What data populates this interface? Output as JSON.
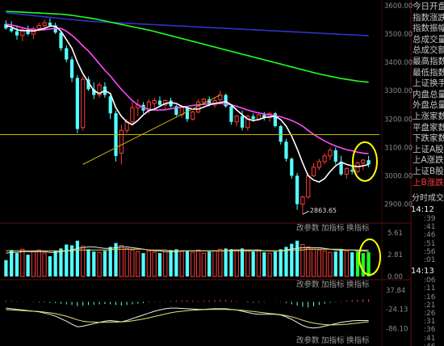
{
  "price_axis": [
    "3600.00",
    "3500.00",
    "3400.00",
    "3300.00",
    "3200.00",
    "3100.00",
    "3000.00",
    "2900.00"
  ],
  "low_marker": "2863.65",
  "volume_axis": [
    "5.61",
    "2.81",
    "0.00"
  ],
  "macd_axis": [
    "37.84",
    "-24.13",
    "-86.10"
  ],
  "toolbar": {
    "params_label": "改参数",
    "add_indicator_label": "加指标",
    "switch_indicator_label": "换指标"
  },
  "side_stats": [
    {
      "label": "今日开盘"
    },
    {
      "label": "指数涨跌"
    },
    {
      "label": "指数振幅"
    },
    {
      "label": "总成交量"
    },
    {
      "label": "总成交额"
    },
    {
      "label": "最高指数"
    },
    {
      "label": "最低指数"
    },
    {
      "label": "上证换手"
    },
    {
      "label": "内盘总量"
    },
    {
      "label": "外盘总量"
    },
    {
      "label": "上涨家数"
    },
    {
      "label": "平盘家数"
    },
    {
      "label": "下跌家数"
    },
    {
      "label": "上证A股"
    },
    {
      "label": "上A涨跌"
    },
    {
      "label": "上证B股"
    },
    {
      "label": "上B涨跌"
    }
  ],
  "tick_section_title": "分时成交",
  "tick_times": [
    {
      "time": "14:12",
      "ticks": [
        "39",
        "41",
        "46",
        "51",
        "56",
        "01"
      ]
    },
    {
      "time": "14:13",
      "ticks": [
        "06",
        "11",
        "16",
        "21",
        "26",
        "31",
        "36",
        "41",
        "46"
      ]
    }
  ],
  "colors": {
    "up": "#ff3b3b",
    "down": "#54ffff",
    "ma_short": "#ffffff",
    "ma_mid": "#ff4bff",
    "ma_long": "#20ff20",
    "ma_longest": "#3232c8",
    "highlight": "#ffff00"
  },
  "chart_data": {
    "type": "candlestick",
    "ylim": [
      2850,
      3620
    ],
    "candles": [
      [
        3535,
        3548,
        3515,
        3520
      ],
      [
        3520,
        3545,
        3505,
        3510
      ],
      [
        3510,
        3530,
        3480,
        3495
      ],
      [
        3495,
        3520,
        3475,
        3515
      ],
      [
        3515,
        3530,
        3495,
        3500
      ],
      [
        3500,
        3525,
        3482,
        3520
      ],
      [
        3520,
        3540,
        3510,
        3530
      ],
      [
        3530,
        3550,
        3515,
        3540
      ],
      [
        3540,
        3555,
        3525,
        3530
      ],
      [
        3530,
        3540,
        3500,
        3505
      ],
      [
        3505,
        3510,
        3440,
        3450
      ],
      [
        3450,
        3460,
        3400,
        3410
      ],
      [
        3410,
        3420,
        3330,
        3345
      ],
      [
        3345,
        3355,
        3150,
        3165
      ],
      [
        3170,
        3350,
        3160,
        3340
      ],
      [
        3340,
        3350,
        3300,
        3305
      ],
      [
        3305,
        3330,
        3270,
        3285
      ],
      [
        3285,
        3330,
        3275,
        3320
      ],
      [
        3315,
        3330,
        3275,
        3285
      ],
      [
        3280,
        3285,
        3200,
        3220
      ],
      [
        3220,
        3230,
        3050,
        3070
      ],
      [
        3080,
        3180,
        3040,
        3160
      ],
      [
        3160,
        3200,
        3150,
        3190
      ],
      [
        3190,
        3260,
        3180,
        3240
      ],
      [
        3240,
        3270,
        3210,
        3250
      ],
      [
        3250,
        3260,
        3220,
        3230
      ],
      [
        3230,
        3270,
        3220,
        3260
      ],
      [
        3255,
        3275,
        3240,
        3265
      ],
      [
        3265,
        3280,
        3245,
        3250
      ],
      [
        3250,
        3270,
        3235,
        3265
      ],
      [
        3265,
        3275,
        3240,
        3245
      ],
      [
        3245,
        3250,
        3210,
        3215
      ],
      [
        3215,
        3250,
        3205,
        3240
      ],
      [
        3240,
        3245,
        3190,
        3200
      ],
      [
        3200,
        3230,
        3195,
        3225
      ],
      [
        3225,
        3270,
        3220,
        3260
      ],
      [
        3260,
        3275,
        3250,
        3270
      ],
      [
        3270,
        3280,
        3245,
        3250
      ],
      [
        3250,
        3275,
        3240,
        3265
      ],
      [
        3268,
        3300,
        3255,
        3285
      ],
      [
        3285,
        3290,
        3240,
        3245
      ],
      [
        3245,
        3250,
        3180,
        3190
      ],
      [
        3190,
        3215,
        3175,
        3210
      ],
      [
        3210,
        3230,
        3160,
        3170
      ],
      [
        3170,
        3215,
        3160,
        3210
      ],
      [
        3210,
        3220,
        3190,
        3200
      ],
      [
        3200,
        3220,
        3195,
        3215
      ],
      [
        3215,
        3225,
        3195,
        3205
      ],
      [
        3205,
        3225,
        3190,
        3220
      ],
      [
        3220,
        3225,
        3170,
        3175
      ],
      [
        3175,
        3180,
        3110,
        3120
      ],
      [
        3120,
        3130,
        3050,
        3060
      ],
      [
        3060,
        3065,
        2990,
        3000
      ],
      [
        3000,
        3010,
        2880,
        2900
      ],
      [
        2900,
        2930,
        2864,
        2925
      ],
      [
        2925,
        3010,
        2920,
        3000
      ],
      [
        3000,
        3045,
        2995,
        3030
      ],
      [
        3030,
        3060,
        3020,
        3050
      ],
      [
        3050,
        3080,
        3040,
        3070
      ],
      [
        3070,
        3100,
        3055,
        3090
      ],
      [
        3090,
        3100,
        3040,
        3050
      ],
      [
        3050,
        3070,
        3000,
        3005
      ],
      [
        3005,
        3030,
        2990,
        3025
      ],
      [
        3020,
        3035,
        3005,
        3015
      ],
      [
        3015,
        3050,
        3008,
        3045
      ],
      [
        3045,
        3060,
        3020,
        3055
      ],
      [
        3055,
        3070,
        3030,
        3040
      ]
    ],
    "ma_short": [
      3530,
      3525,
      3515,
      3512,
      3512,
      3510,
      3515,
      3520,
      3528,
      3528,
      3510,
      3480,
      3450,
      3400,
      3360,
      3330,
      3300,
      3290,
      3300,
      3290,
      3240,
      3210,
      3190,
      3180,
      3195,
      3215,
      3230,
      3235,
      3245,
      3255,
      3258,
      3255,
      3245,
      3240,
      3235,
      3235,
      3242,
      3250,
      3255,
      3258,
      3262,
      3250,
      3232,
      3215,
      3200,
      3195,
      3198,
      3205,
      3208,
      3210,
      3198,
      3175,
      3140,
      3095,
      3045,
      3000,
      2985,
      2978,
      2990,
      3015,
      3035,
      3048,
      3040,
      3035,
      3032,
      3035,
      3040
    ],
    "ma_mid": [
      3535,
      3532,
      3528,
      3522,
      3518,
      3515,
      3514,
      3515,
      3518,
      3520,
      3520,
      3510,
      3495,
      3478,
      3458,
      3440,
      3418,
      3395,
      3372,
      3352,
      3328,
      3305,
      3285,
      3265,
      3250,
      3240,
      3235,
      3232,
      3232,
      3233,
      3236,
      3240,
      3243,
      3245,
      3248,
      3250,
      3252,
      3254,
      3255,
      3255,
      3253,
      3250,
      3245,
      3238,
      3232,
      3226,
      3222,
      3218,
      3215,
      3212,
      3208,
      3202,
      3195,
      3186,
      3175,
      3160,
      3146,
      3134,
      3123,
      3113,
      3105,
      3098,
      3092,
      3088,
      3083,
      3080,
      3078
    ],
    "ma_long": [
      3580,
      3579,
      3578,
      3577,
      3576,
      3575,
      3574,
      3573,
      3572,
      3571,
      3570,
      3568,
      3566,
      3563,
      3560,
      3557,
      3554,
      3550,
      3546,
      3542,
      3538,
      3534,
      3530,
      3526,
      3522,
      3518,
      3514,
      3509,
      3504,
      3499,
      3494,
      3489,
      3484,
      3479,
      3474,
      3469,
      3464,
      3459,
      3454,
      3449,
      3444,
      3439,
      3434,
      3429,
      3424,
      3419,
      3414,
      3409,
      3404,
      3399,
      3394,
      3389,
      3384,
      3379,
      3374,
      3369,
      3364,
      3359,
      3355,
      3351,
      3347,
      3343,
      3340,
      3337,
      3334,
      3332,
      3330
    ],
    "ma_longest": [
      3575,
      3573,
      3571,
      3569,
      3567,
      3565,
      3563,
      3561,
      3559,
      3557,
      3555,
      3553,
      3551,
      3549,
      3547,
      3545,
      3544,
      3543,
      3542,
      3541,
      3540,
      3539,
      3538,
      3537,
      3536,
      3535,
      3534,
      3533,
      3532,
      3531,
      3530,
      3529,
      3528,
      3527,
      3526,
      3525,
      3524,
      3523,
      3522,
      3521,
      3520,
      3519,
      3518,
      3517,
      3516,
      3515,
      3514,
      3513,
      3512,
      3511,
      3510,
      3509,
      3508,
      3507,
      3506,
      3505,
      3504,
      3503,
      3502,
      3501,
      3500,
      3499,
      3498,
      3497,
      3496,
      3495,
      3494
    ],
    "horizontal_line": 3145,
    "trend_line": [
      [
        14,
        3040
      ],
      [
        39,
        3285
      ]
    ],
    "volume": [
      2.1,
      3.4,
      3.0,
      3.5,
      2.8,
      3.2,
      3.4,
      3.0,
      2.6,
      3.3,
      3.6,
      4.1,
      4.0,
      4.6,
      3.9,
      3.5,
      3.2,
      3.1,
      3.3,
      3.8,
      4.3,
      4.0,
      3.6,
      3.4,
      3.2,
      3.0,
      3.3,
      3.1,
      3.0,
      3.2,
      3.4,
      3.5,
      3.2,
      3.3,
      3.1,
      3.4,
      3.0,
      3.2,
      3.3,
      3.5,
      3.6,
      3.5,
      3.4,
      3.6,
      3.3,
      3.2,
      3.4,
      3.1,
      3.0,
      3.2,
      3.5,
      3.8,
      4.2,
      4.6,
      4.1,
      3.8,
      3.5,
      3.4,
      3.3,
      3.1,
      3.2,
      3.4,
      3.3,
      3.1,
      3.2,
      3.0,
      3.1
    ],
    "volume_ma_a": [
      3.0,
      3.1,
      3.1,
      3.2,
      3.2,
      3.2,
      3.2,
      3.2,
      3.1,
      3.1,
      3.2,
      3.3,
      3.4,
      3.6,
      3.7,
      3.8,
      3.8,
      3.7,
      3.6,
      3.6,
      3.7,
      3.8,
      3.8,
      3.7,
      3.6,
      3.5,
      3.4,
      3.3,
      3.3,
      3.2,
      3.2,
      3.2,
      3.3,
      3.3,
      3.3,
      3.3,
      3.3,
      3.3,
      3.3,
      3.3,
      3.3,
      3.4,
      3.4,
      3.4,
      3.4,
      3.4,
      3.4,
      3.3,
      3.3,
      3.3,
      3.3,
      3.4,
      3.5,
      3.6,
      3.7,
      3.7,
      3.7,
      3.7,
      3.6,
      3.5,
      3.4,
      3.4,
      3.4,
      3.4,
      3.3,
      3.3,
      3.2
    ],
    "volume_ma_b": [
      3.3,
      3.3,
      3.3,
      3.3,
      3.3,
      3.3,
      3.3,
      3.3,
      3.3,
      3.3,
      3.3,
      3.3,
      3.3,
      3.4,
      3.4,
      3.4,
      3.4,
      3.4,
      3.4,
      3.4,
      3.5,
      3.5,
      3.5,
      3.5,
      3.5,
      3.5,
      3.4,
      3.4,
      3.4,
      3.4,
      3.3,
      3.3,
      3.3,
      3.3,
      3.3,
      3.3,
      3.3,
      3.3,
      3.3,
      3.3,
      3.3,
      3.3,
      3.3,
      3.3,
      3.3,
      3.3,
      3.3,
      3.3,
      3.3,
      3.3,
      3.3,
      3.3,
      3.4,
      3.4,
      3.4,
      3.5,
      3.5,
      3.5,
      3.5,
      3.5,
      3.5,
      3.5,
      3.4,
      3.4,
      3.4,
      3.4,
      3.4
    ],
    "volume_ylim": [
      0,
      5.61
    ],
    "macd_hist": [
      4,
      3,
      2,
      1,
      0,
      -1,
      -2,
      -2,
      -3,
      -4,
      -6,
      -8,
      -10,
      -14,
      -12,
      -10,
      -9,
      -8,
      -7,
      -8,
      -10,
      -12,
      -10,
      -8,
      -6,
      -4,
      -2,
      -1,
      1,
      2,
      3,
      4,
      5,
      5,
      4,
      3,
      4,
      5,
      6,
      7,
      6,
      4,
      2,
      0,
      -2,
      -3,
      -2,
      -1,
      0,
      1,
      -1,
      -4,
      -8,
      -12,
      -16,
      -18,
      -14,
      -10,
      -6,
      -3,
      -1,
      2,
      4,
      6,
      7,
      8,
      8
    ],
    "macd_dif": [
      -20,
      -22,
      -24,
      -26,
      -28,
      -30,
      -32,
      -36,
      -40,
      -46,
      -54,
      -62,
      -72,
      -80,
      -78,
      -74,
      -70,
      -66,
      -62,
      -60,
      -62,
      -64,
      -60,
      -54,
      -48,
      -42,
      -36,
      -30,
      -26,
      -22,
      -20,
      -20,
      -21,
      -22,
      -23,
      -24,
      -24,
      -23,
      -22,
      -22,
      -22,
      -24,
      -26,
      -30,
      -34,
      -38,
      -40,
      -40,
      -40,
      -40,
      -42,
      -48,
      -56,
      -66,
      -76,
      -82,
      -84,
      -82,
      -78,
      -74,
      -70,
      -66,
      -63,
      -61,
      -60,
      -60,
      -60
    ],
    "macd_dea": [
      -25,
      -26,
      -27,
      -28,
      -29,
      -30,
      -31,
      -33,
      -35,
      -38,
      -42,
      -46,
      -52,
      -58,
      -62,
      -64,
      -65,
      -66,
      -66,
      -65,
      -65,
      -64,
      -63,
      -61,
      -58,
      -55,
      -51,
      -47,
      -43,
      -39,
      -35,
      -32,
      -30,
      -28,
      -27,
      -26,
      -25,
      -24,
      -24,
      -24,
      -24,
      -25,
      -26,
      -27,
      -29,
      -31,
      -33,
      -35,
      -37,
      -39,
      -41,
      -44,
      -48,
      -53,
      -59,
      -64,
      -68,
      -71,
      -73,
      -74,
      -74,
      -73,
      -72,
      -70,
      -68,
      -66,
      -64
    ],
    "macd_ylim": [
      -95,
      40
    ]
  }
}
